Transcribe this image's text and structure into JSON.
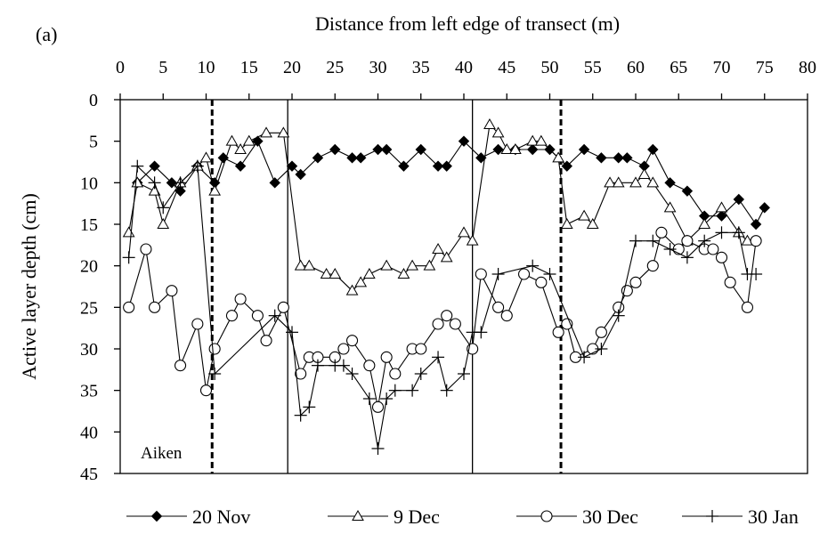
{
  "chart_data": {
    "type": "line",
    "panel_label": "(a)",
    "title": "",
    "xlabel": "Distance from left edge of transect (m)",
    "ylabel": "Active layer depth (cm)",
    "xlim": [
      0,
      80
    ],
    "ylim": [
      0,
      45
    ],
    "y_inverted": true,
    "x_axis_position": "top",
    "grid": false,
    "x_ticks": [
      "0",
      "5",
      "10",
      "15",
      "20",
      "25",
      "30",
      "35",
      "40",
      "45",
      "50",
      "55",
      "60",
      "65",
      "70",
      "75",
      "80"
    ],
    "y_ticks": [
      "0",
      "5",
      "10",
      "15",
      "20",
      "25",
      "30",
      "35",
      "40",
      "45"
    ],
    "legend_position": "bottom",
    "annotation": "Aiken",
    "vertical_lines": [
      {
        "x": 10.7,
        "style": "dashed"
      },
      {
        "x": 19.5,
        "style": "solid"
      },
      {
        "x": 41.0,
        "style": "solid"
      },
      {
        "x": 51.3,
        "style": "dashed"
      }
    ],
    "series": [
      {
        "name": "20 Nov",
        "marker": "filled-diamond",
        "x": [
          2,
          4,
          6,
          7,
          9,
          11,
          12,
          14,
          16,
          18,
          20,
          21,
          23,
          25,
          27,
          28,
          30,
          31,
          33,
          35,
          37,
          38,
          40,
          42,
          44,
          46,
          48,
          50,
          52,
          54,
          56,
          58,
          59,
          61,
          62,
          64,
          66,
          68,
          70,
          72,
          74,
          75
        ],
        "y": [
          10,
          8,
          10,
          11,
          8,
          10,
          7,
          8,
          5,
          10,
          8,
          9,
          7,
          6,
          7,
          7,
          6,
          6,
          8,
          6,
          8,
          8,
          5,
          7,
          6,
          6,
          6,
          6,
          8,
          6,
          7,
          7,
          7,
          8,
          6,
          10,
          11,
          14,
          14,
          12,
          15,
          13
        ]
      },
      {
        "name": "9 Dec",
        "marker": "open-triangle",
        "x": [
          1,
          2,
          4,
          5,
          7,
          9,
          10,
          11,
          13,
          14,
          15,
          17,
          19,
          21,
          22,
          24,
          25,
          27,
          28,
          29,
          31,
          33,
          34,
          36,
          37,
          38,
          40,
          41,
          43,
          44,
          45,
          46,
          48,
          49,
          51,
          52,
          54,
          55,
          57,
          58,
          60,
          61,
          62,
          64,
          66,
          68,
          70,
          72,
          73
        ],
        "y": [
          16,
          10,
          11,
          15,
          10,
          8,
          7,
          11,
          5,
          6,
          5,
          4,
          4,
          20,
          20,
          21,
          21,
          23,
          22,
          21,
          20,
          21,
          20,
          20,
          18,
          19,
          16,
          17,
          3,
          4,
          6,
          6,
          5,
          5,
          7,
          15,
          14,
          15,
          10,
          10,
          10,
          9,
          10,
          13,
          17,
          15,
          13,
          16,
          17
        ]
      },
      {
        "name": "30 Dec",
        "marker": "open-circle",
        "x": [
          1,
          3,
          4,
          6,
          7,
          9,
          10,
          11,
          13,
          14,
          16,
          17,
          19,
          21,
          22,
          23,
          25,
          26,
          27,
          29,
          30,
          31,
          32,
          34,
          35,
          37,
          38,
          39,
          41,
          42,
          44,
          45,
          47,
          49,
          51,
          52,
          53,
          55,
          56,
          58,
          59,
          60,
          62,
          63,
          65,
          66,
          68,
          69,
          70,
          71,
          73,
          74
        ],
        "y": [
          25,
          18,
          25,
          23,
          32,
          27,
          35,
          30,
          26,
          24,
          26,
          29,
          25,
          33,
          31,
          31,
          31,
          30,
          29,
          32,
          37,
          31,
          33,
          30,
          30,
          27,
          26,
          27,
          30,
          21,
          25,
          26,
          21,
          22,
          28,
          27,
          31,
          30,
          28,
          25,
          23,
          22,
          20,
          16,
          18,
          17,
          18,
          18,
          19,
          22,
          25,
          17
        ]
      },
      {
        "name": "30 Jan",
        "marker": "plus",
        "x": [
          1,
          2,
          4,
          5,
          7,
          9,
          11,
          18,
          20,
          21,
          22,
          23,
          25,
          26,
          27,
          29,
          30,
          31,
          32,
          34,
          35,
          37,
          38,
          40,
          41,
          42,
          44,
          48,
          50,
          54,
          56,
          58,
          60,
          62,
          64,
          66,
          68,
          70,
          72,
          73,
          74
        ],
        "y": [
          19,
          8,
          10,
          13,
          10,
          8,
          33,
          26,
          28,
          38,
          37,
          32,
          32,
          32,
          33,
          36,
          42,
          36,
          35,
          35,
          33,
          31,
          35,
          33,
          28,
          28,
          21,
          20,
          21,
          31,
          30,
          26,
          17,
          17,
          18,
          19,
          17,
          16,
          16,
          21,
          21
        ]
      }
    ]
  }
}
